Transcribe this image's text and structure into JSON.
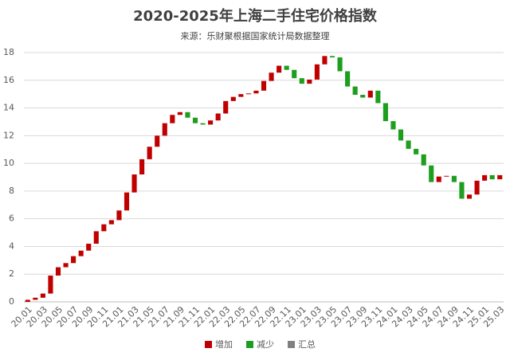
{
  "chart_data": {
    "type": "waterfall",
    "title": "2020-2025年上海二手住宅价格指数",
    "subtitle": "来源：乐财聚根据国家统计局数据整理",
    "categories": [
      "20.01",
      null,
      "20.03",
      null,
      "20.05",
      null,
      "20.07",
      null,
      "20.09",
      null,
      "20.11",
      null,
      "21.01",
      null,
      "21.03",
      null,
      "21.05",
      null,
      "21.07",
      null,
      "21.09",
      null,
      "21.11",
      null,
      "22.01",
      null,
      "22.03",
      null,
      "22.05",
      null,
      "22.07",
      null,
      "22.09",
      null,
      "22.11",
      null,
      "23.01",
      null,
      "23.03",
      null,
      "23.05",
      null,
      "23.07",
      null,
      "23.09",
      null,
      "23.11",
      null,
      "24.01",
      null,
      "24.03",
      null,
      "24.05",
      null,
      "24.07",
      null,
      "24.09",
      null,
      "24.11",
      null,
      "25.01",
      null,
      "25.03"
    ],
    "values": [
      0.15,
      0.15,
      0.3,
      1.3,
      0.6,
      0.3,
      0.5,
      0.4,
      0.5,
      0.9,
      0.5,
      0.3,
      0.7,
      1.3,
      1.3,
      1.1,
      0.9,
      0.8,
      0.9,
      0.6,
      0.2,
      -0.4,
      -0.4,
      -0.1,
      0.3,
      0.5,
      0.9,
      0.3,
      0.2,
      0.05,
      0.2,
      0.7,
      0.6,
      0.5,
      -0.3,
      -0.6,
      -0.4,
      0.3,
      1.1,
      0.6,
      -0.1,
      -1.0,
      -1.1,
      -0.6,
      -0.2,
      0.5,
      -0.9,
      -1.3,
      -0.6,
      -0.8,
      -0.6,
      -0.4,
      -0.8,
      -1.2,
      0.4,
      0.05,
      -0.45,
      -1.2,
      0.3,
      1.0,
      0.4,
      -0.3,
      0.3
    ],
    "legend": [
      {
        "name": "增加",
        "color": "#c00000"
      },
      {
        "name": "减少",
        "color": "#1e9e1e"
      },
      {
        "name": "汇总",
        "color": "#808080"
      }
    ],
    "ylim": [
      0,
      18
    ],
    "yticks": [
      0,
      2,
      4,
      6,
      8,
      10,
      12,
      14,
      16,
      18
    ],
    "grid": true
  }
}
